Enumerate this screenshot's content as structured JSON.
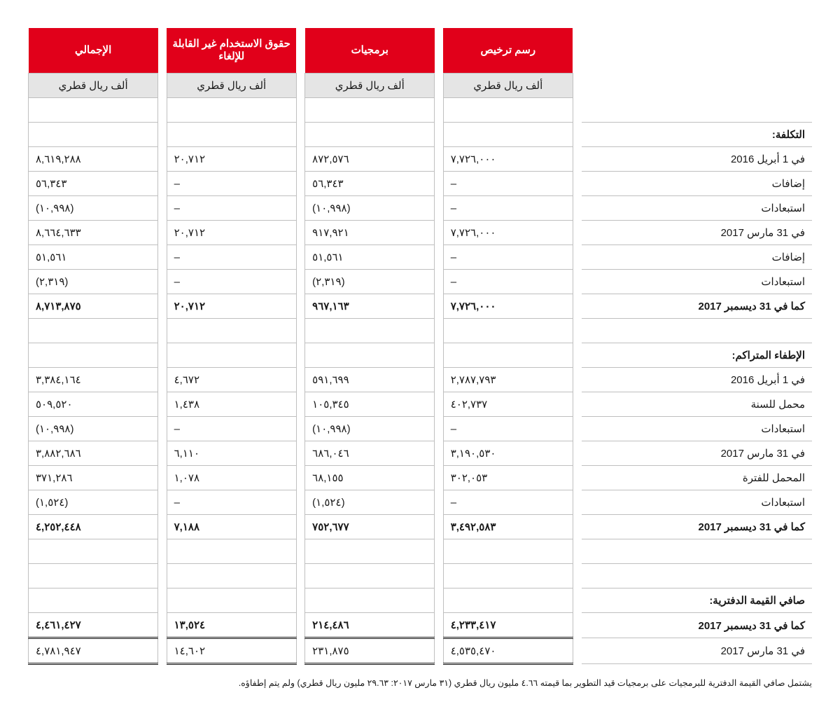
{
  "headers": {
    "c1": "رسم ترخيص",
    "c2": "برمجيات",
    "c3": "حقوق الاستخدام غير القابلة للإلغاء",
    "c4": "الإجمالي",
    "sub": "ألف ريال قطري"
  },
  "sections": {
    "cost": "التكلفة:",
    "amort": "الإطفاء المتراكم:",
    "nbv": "صافي القيمة الدفترية:"
  },
  "rows": {
    "r1": {
      "l": "في 1 أبريل 2016",
      "a": "٧,٧٢٦,٠٠٠",
      "b": "٨٧٢,٥٧٦",
      "c": "٢٠,٧١٢",
      "d": "٨,٦١٩,٢٨٨"
    },
    "r2": {
      "l": "إضافات",
      "a": "–",
      "b": "٥٦,٣٤٣",
      "c": "–",
      "d": "٥٦,٣٤٣"
    },
    "r3": {
      "l": "استبعادات",
      "a": "–",
      "b": "(١٠,٩٩٨)",
      "c": "–",
      "d": "(١٠,٩٩٨)"
    },
    "r4": {
      "l": "في 31 مارس 2017",
      "a": "٧,٧٢٦,٠٠٠",
      "b": "٩١٧,٩٢١",
      "c": "٢٠,٧١٢",
      "d": "٨,٦٦٤,٦٣٣"
    },
    "r5": {
      "l": "إضافات",
      "a": "–",
      "b": "٥١,٥٦١",
      "c": "–",
      "d": "٥١,٥٦١"
    },
    "r6": {
      "l": "استبعادات",
      "a": "–",
      "b": "(٢,٣١٩)",
      "c": "–",
      "d": "(٢,٣١٩)"
    },
    "r7": {
      "l": "كما في 31 ديسمبر 2017",
      "a": "٧,٧٢٦,٠٠٠",
      "b": "٩٦٧,١٦٣",
      "c": "٢٠,٧١٢",
      "d": "٨,٧١٣,٨٧٥"
    },
    "a1": {
      "l": "في 1 أبريل 2016",
      "a": "٢,٧٨٧,٧٩٣",
      "b": "٥٩١,٦٩٩",
      "c": "٤,٦٧٢",
      "d": "٣,٣٨٤,١٦٤"
    },
    "a2": {
      "l": "محمل للسنة",
      "a": "٤٠٢,٧٣٧",
      "b": "١٠٥,٣٤٥",
      "c": "١,٤٣٨",
      "d": "٥٠٩,٥٢٠"
    },
    "a3": {
      "l": "استبعادات",
      "a": "–",
      "b": "(١٠,٩٩٨)",
      "c": "–",
      "d": "(١٠,٩٩٨)"
    },
    "a4": {
      "l": "في 31 مارس 2017",
      "a": "٣,١٩٠,٥٣٠",
      "b": "٦٨٦,٠٤٦",
      "c": "٦,١١٠",
      "d": "٣,٨٨٢,٦٨٦"
    },
    "a5": {
      "l": "المحمل للفترة",
      "a": "٣٠٢,٠٥٣",
      "b": "٦٨,١٥٥",
      "c": "١,٠٧٨",
      "d": "٣٧١,٢٨٦"
    },
    "a6": {
      "l": "استبعادات",
      "a": "–",
      "b": "(١,٥٢٤)",
      "c": "–",
      "d": "(١,٥٢٤)"
    },
    "a7": {
      "l": "كما في 31 ديسمبر 2017",
      "a": "٣,٤٩٢,٥٨٣",
      "b": "٧٥٢,٦٧٧",
      "c": "٧,١٨٨",
      "d": "٤,٢٥٢,٤٤٨"
    },
    "n1": {
      "l": "كما في 31 ديسمبر 2017",
      "a": "٤,٢٣٣,٤١٧",
      "b": "٢١٤,٤٨٦",
      "c": "١٣,٥٢٤",
      "d": "٤,٤٦١,٤٢٧"
    },
    "n2": {
      "l": "في 31 مارس 2017",
      "a": "٤,٥٣٥,٤٧٠",
      "b": "٢٣١,٨٧٥",
      "c": "١٤,٦٠٢",
      "d": "٤,٧٨١,٩٤٧"
    }
  },
  "footnote": "يشتمل صافي القيمة الدفترية للبرمجيات على برمجيات قيد التطوير بما قيمته ٤.٦٦ مليون ريال قطري (٣١ مارس ٢٠١٧: ٢٩.٦٣ مليون ريال قطري) ولم يتم إطفاؤه."
}
